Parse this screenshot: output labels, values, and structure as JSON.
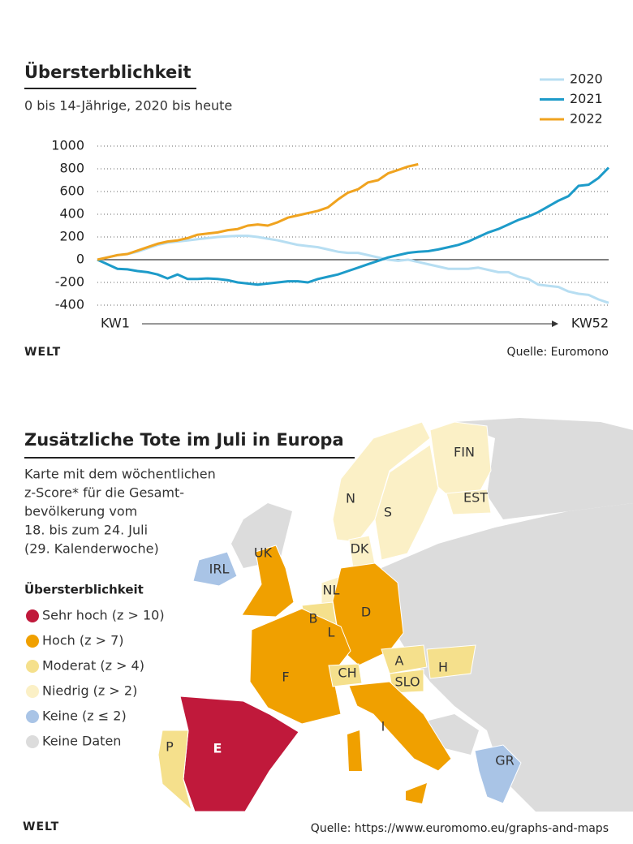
{
  "chart_data": {
    "type": "line",
    "title": "Übersterblichkeit",
    "subtitle": "0 bis 14-Jährige, 2020 bis heute",
    "x": [
      1,
      2,
      3,
      4,
      5,
      6,
      7,
      8,
      9,
      10,
      11,
      12,
      13,
      14,
      15,
      16,
      17,
      18,
      19,
      20,
      21,
      22,
      23,
      24,
      25,
      26,
      27,
      28,
      29,
      30,
      31,
      32,
      33,
      34,
      35,
      36,
      37,
      38,
      39,
      40,
      41,
      42,
      43,
      44,
      45,
      46,
      47,
      48,
      49,
      50,
      51,
      52
    ],
    "xlim": [
      1,
      52
    ],
    "xticks": [
      {
        "value": 1,
        "label": "KW1"
      },
      {
        "value": 52,
        "label": "KW52"
      }
    ],
    "ylim": [
      -400,
      1000
    ],
    "yticks": [
      -400,
      -200,
      0,
      200,
      400,
      600,
      800,
      1000
    ],
    "grid": true,
    "legend": "top-right",
    "series": [
      {
        "name": "2020",
        "color": "#b7def2",
        "values": [
          0,
          20,
          40,
          50,
          70,
          100,
          130,
          150,
          160,
          170,
          180,
          190,
          200,
          205,
          210,
          210,
          200,
          185,
          170,
          150,
          130,
          120,
          110,
          90,
          70,
          60,
          60,
          40,
          20,
          0,
          -10,
          0,
          -20,
          -40,
          -60,
          -80,
          -80,
          -80,
          -70,
          -90,
          -110,
          -110,
          -150,
          -170,
          -220,
          -230,
          -240,
          -280,
          -300,
          -310,
          -350,
          -380
        ]
      },
      {
        "name": "2021",
        "color": "#1d9bc9",
        "values": [
          0,
          -40,
          -80,
          -85,
          -100,
          -110,
          -130,
          -165,
          -130,
          -170,
          -170,
          -165,
          -170,
          -180,
          -200,
          -210,
          -220,
          -210,
          -200,
          -190,
          -190,
          -200,
          -170,
          -150,
          -130,
          -100,
          -70,
          -40,
          -10,
          20,
          40,
          60,
          70,
          75,
          90,
          110,
          130,
          160,
          200,
          240,
          270,
          310,
          350,
          380,
          420,
          470,
          520,
          560,
          650,
          660,
          720,
          810
        ]
      },
      {
        "name": "2022",
        "color": "#f0a31f",
        "values": [
          0,
          20,
          40,
          50,
          80,
          110,
          140,
          160,
          170,
          190,
          220,
          230,
          240,
          260,
          270,
          300,
          310,
          300,
          330,
          370,
          390,
          410,
          430,
          460,
          530,
          590,
          620,
          680,
          700,
          760,
          790,
          820,
          840,
          null,
          null,
          null,
          null,
          null,
          null,
          null,
          null,
          null,
          null,
          null,
          null,
          null,
          null,
          null,
          null,
          null,
          null,
          null
        ]
      }
    ],
    "source": "Quelle: Euromono",
    "logo": "WELT"
  },
  "map": {
    "title": "Zusätzliche Tote im Juli in Europa",
    "description": [
      "Karte mit dem wöchentlichen",
      "z-Score* für die Gesamt-",
      "bevölkerung vom",
      "18. bis zum 24. Juli",
      "(29. Kalenderwoche)"
    ],
    "legend": {
      "title": "Übersterblichkeit",
      "items": [
        {
          "label": "Sehr hoch (z > 10)",
          "color": "#c0193b"
        },
        {
          "label": "Hoch (z > 7)",
          "color": "#f0a000"
        },
        {
          "label": "Moderat (z > 4)",
          "color": "#f5e08c"
        },
        {
          "label": "Niedrig (z > 2)",
          "color": "#fbf0c6"
        },
        {
          "label": "Keine (z ≤ 2)",
          "color": "#a9c4e6"
        },
        {
          "label": "Keine Daten",
          "color": "#dcdcdc"
        }
      ]
    },
    "countries": [
      {
        "label": "FIN",
        "level": 3
      },
      {
        "label": "EST",
        "level": 3
      },
      {
        "label": "N",
        "level": 3
      },
      {
        "label": "S",
        "level": 3
      },
      {
        "label": "DK",
        "level": 3
      },
      {
        "label": "UK",
        "level": 1
      },
      {
        "label": "IRL",
        "level": 4
      },
      {
        "label": "NL",
        "level": 3
      },
      {
        "label": "B",
        "level": 2
      },
      {
        "label": "L",
        "level": 4
      },
      {
        "label": "D",
        "level": 1
      },
      {
        "label": "F",
        "level": 1
      },
      {
        "label": "CH",
        "level": 2
      },
      {
        "label": "A",
        "level": 2
      },
      {
        "label": "SLO",
        "level": 2
      },
      {
        "label": "H",
        "level": 2
      },
      {
        "label": "I",
        "level": 1
      },
      {
        "label": "E",
        "level": 0
      },
      {
        "label": "P",
        "level": 2
      },
      {
        "label": "GR",
        "level": 4
      }
    ],
    "source": "Quelle: https://www.euromomo.eu/graphs-and-maps",
    "logo": "WELT"
  }
}
